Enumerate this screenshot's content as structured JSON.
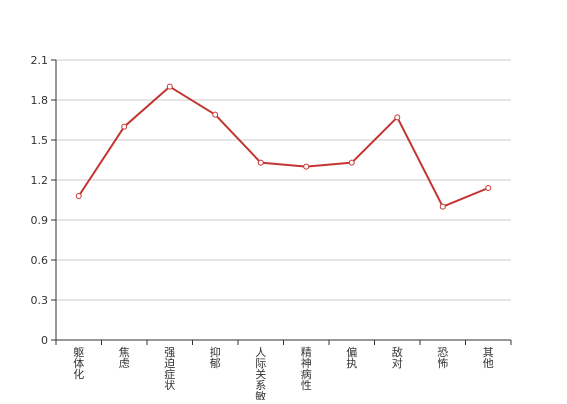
{
  "chart_data": {
    "type": "line",
    "categories": [
      "躯体化",
      "焦虑",
      "强迫症状",
      "抑郁",
      "人际关系敏感",
      "精神病性",
      "偏执",
      "敌对",
      "恐怖",
      "其他"
    ],
    "series": [
      {
        "values": [
          1.08,
          1.6,
          1.9,
          1.69,
          1.33,
          1.3,
          1.33,
          1.67,
          1.0,
          1.14
        ]
      }
    ],
    "ylim": [
      0,
      2.1
    ],
    "yticks": [
      "0",
      "0.3",
      "0.6",
      "0.9",
      "1.2",
      "1.5",
      "1.8",
      "2.1"
    ],
    "grid": true,
    "line_color": "#c23531",
    "grid_color": "#cccccc",
    "axis_color": "#333333"
  }
}
